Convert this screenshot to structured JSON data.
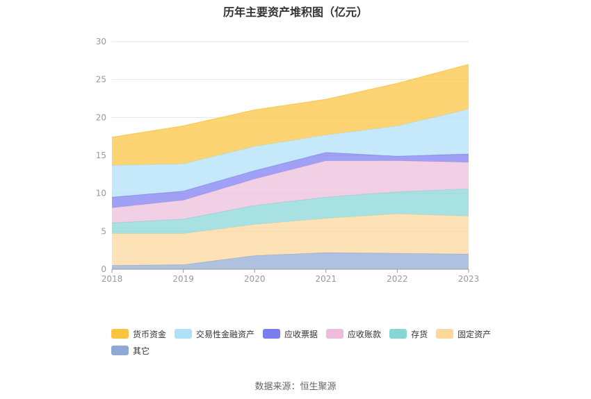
{
  "title": "历年主要资产堆积图（亿元）",
  "source": "数据来源：恒生聚源",
  "chart_data": {
    "type": "area",
    "stacked": true,
    "title": "历年主要资产堆积图（亿元）",
    "categories": [
      "2018",
      "2019",
      "2020",
      "2021",
      "2022",
      "2023"
    ],
    "ylim": [
      0,
      30
    ],
    "yticks": [
      0,
      5,
      10,
      15,
      20,
      25,
      30
    ],
    "grid": true,
    "legend_position": "bottom",
    "series": [
      {
        "name": "其它",
        "color": "#8fa9d6",
        "values": [
          0.5,
          0.6,
          1.8,
          2.2,
          2.1,
          2.0
        ]
      },
      {
        "name": "固定资产",
        "color": "#fdd79b",
        "values": [
          4.2,
          4.1,
          4.1,
          4.5,
          5.2,
          5.0
        ]
      },
      {
        "name": "存货",
        "color": "#86d6d6",
        "values": [
          1.4,
          1.9,
          2.5,
          2.8,
          2.9,
          3.6
        ]
      },
      {
        "name": "应收账款",
        "color": "#ecbcdb",
        "values": [
          2.0,
          2.5,
          3.5,
          4.8,
          4.1,
          3.5
        ]
      },
      {
        "name": "应收票据",
        "color": "#7b7cf0",
        "values": [
          1.4,
          1.2,
          1.1,
          1.1,
          0.6,
          1.1
        ]
      },
      {
        "name": "交易性金融资产",
        "color": "#aee0f8",
        "values": [
          4.2,
          3.6,
          3.2,
          2.3,
          4.0,
          5.9
        ]
      },
      {
        "name": "货币资金",
        "color": "#fcc43e",
        "values": [
          3.7,
          5.0,
          4.8,
          4.7,
          5.6,
          5.9
        ]
      }
    ],
    "legend_order": [
      "货币资金",
      "交易性金融资产",
      "应收票据",
      "应收账款",
      "存货",
      "固定资产",
      "其它"
    ]
  }
}
